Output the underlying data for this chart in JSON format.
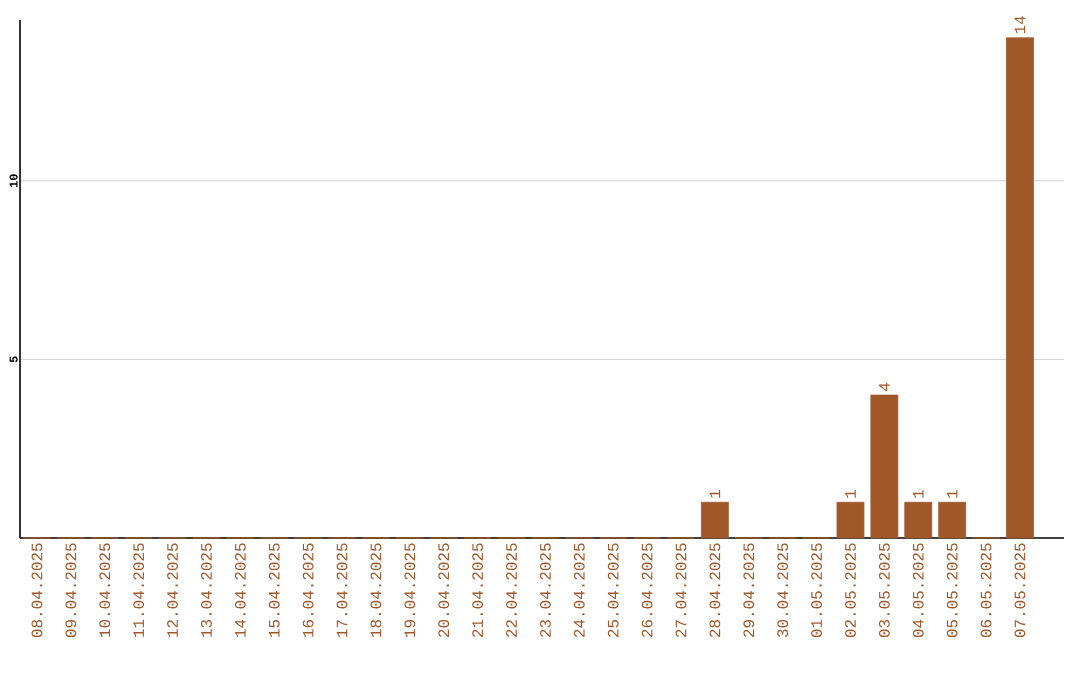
{
  "chart_data": {
    "type": "bar",
    "categories": [
      "08.04.2025",
      "09.04.2025",
      "10.04.2025",
      "11.04.2025",
      "12.04.2025",
      "13.04.2025",
      "14.04.2025",
      "15.04.2025",
      "16.04.2025",
      "17.04.2025",
      "18.04.2025",
      "19.04.2025",
      "20.04.2025",
      "21.04.2025",
      "22.04.2025",
      "23.04.2025",
      "24.04.2025",
      "25.04.2025",
      "26.04.2025",
      "27.04.2025",
      "28.04.2025",
      "29.04.2025",
      "30.04.2025",
      "01.05.2025",
      "02.05.2025",
      "03.05.2025",
      "04.05.2025",
      "05.05.2025",
      "06.05.2025",
      "07.05.2025"
    ],
    "values": [
      0,
      0,
      0,
      0,
      0,
      0,
      0,
      0,
      0,
      0,
      0,
      0,
      0,
      0,
      0,
      0,
      0,
      0,
      0,
      0,
      1,
      0,
      0,
      0,
      1,
      4,
      1,
      1,
      0,
      14
    ],
    "value_labels": [
      null,
      null,
      null,
      null,
      null,
      null,
      null,
      null,
      null,
      null,
      null,
      null,
      null,
      null,
      null,
      null,
      null,
      null,
      null,
      null,
      "1",
      null,
      null,
      null,
      "1",
      "4",
      "1",
      "1",
      null,
      "14"
    ],
    "color": "#a0582a",
    "ylim": [
      0,
      14.5
    ],
    "yticks": [
      5,
      10
    ],
    "grid": "y"
  }
}
